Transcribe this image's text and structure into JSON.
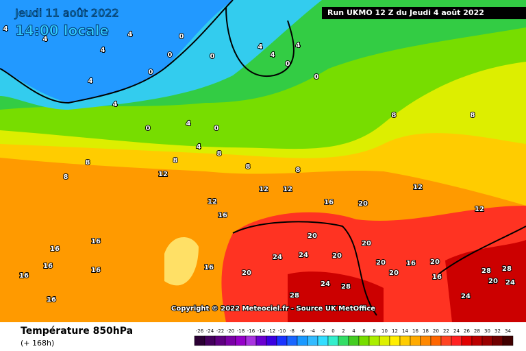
{
  "header": {
    "date": "Jeudi 11 août 2022",
    "time": "14:00 locale",
    "run": "Run UKMO 12 Z du Jeudi 4 août 2022"
  },
  "copyright": "Copyright © 2022 Meteociel.fr - Source UK MetOffice",
  "footer": {
    "title": "Température 850hPa",
    "lead": "(+ 168h)"
  },
  "contour_labels": [
    4,
    4,
    4,
    4,
    4,
    0,
    0,
    0,
    0,
    4,
    4,
    4,
    0,
    0,
    4,
    0,
    0,
    4,
    4,
    8,
    8,
    8,
    8,
    8,
    8,
    8,
    8,
    12,
    12,
    12,
    12,
    12,
    12,
    16,
    16,
    16,
    16,
    16,
    16,
    16,
    16,
    16,
    20,
    20,
    20,
    20,
    20,
    20,
    20,
    24,
    24,
    24,
    24,
    28,
    28,
    28,
    28,
    24,
    20,
    16,
    16,
    20
  ],
  "scale": {
    "ticks": [
      -26,
      -24,
      -22,
      -20,
      -18,
      -16,
      -14,
      -12,
      -10,
      -8,
      -6,
      -4,
      -2,
      0,
      2,
      4,
      6,
      8,
      10,
      12,
      14,
      16,
      18,
      20,
      22,
      24,
      26,
      28,
      30,
      32,
      34
    ],
    "colors": [
      "#2a0033",
      "#44005c",
      "#5e0080",
      "#7a00a6",
      "#9400c8",
      "#a833e0",
      "#6a00d0",
      "#3a00e0",
      "#1a33ff",
      "#1a66ff",
      "#1a99ff",
      "#33bbff",
      "#33ddff",
      "#33eecc",
      "#33dd66",
      "#44cc22",
      "#77dd00",
      "#aaee00",
      "#ddf000",
      "#ffee00",
      "#ffcc00",
      "#ffaa00",
      "#ff8800",
      "#ff6600",
      "#ff4422",
      "#ff2222",
      "#e00000",
      "#bb0000",
      "#990000",
      "#700000",
      "#400000"
    ]
  }
}
